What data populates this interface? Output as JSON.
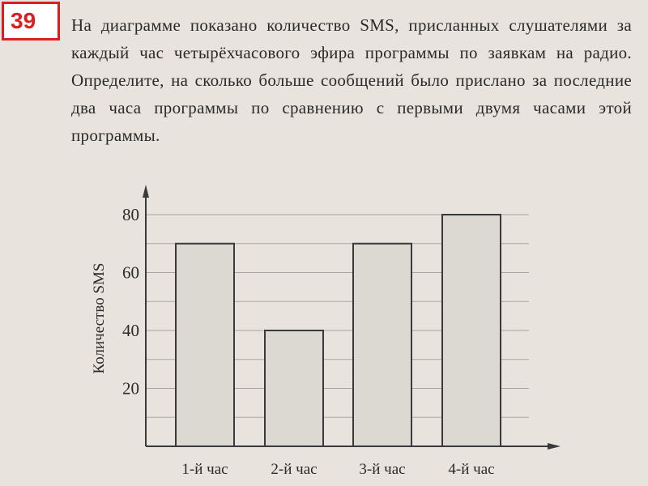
{
  "problem_number": "39",
  "problem_text": "На диаграмме показано количество SMS, присланных слушателями за каждый час четырёхчасового эфира программы по заявкам на радио. Определите, на сколько больше сообщений было прислано за последние два часа программы по сравнению с первыми двумя часами этой программы.",
  "chart_data": {
    "type": "bar",
    "categories": [
      "1-й час",
      "2-й час",
      "3-й час",
      "4-й час"
    ],
    "values": [
      70,
      40,
      70,
      80
    ],
    "title": "",
    "xlabel": "",
    "ylabel": "Количество SMS",
    "ylim": [
      0,
      80
    ],
    "yticks": [
      20,
      40,
      60,
      80
    ],
    "grid": true,
    "grid_step": 10,
    "bar_color": "#dcd8d2",
    "bar_edge_color": "#3a3a3a"
  }
}
